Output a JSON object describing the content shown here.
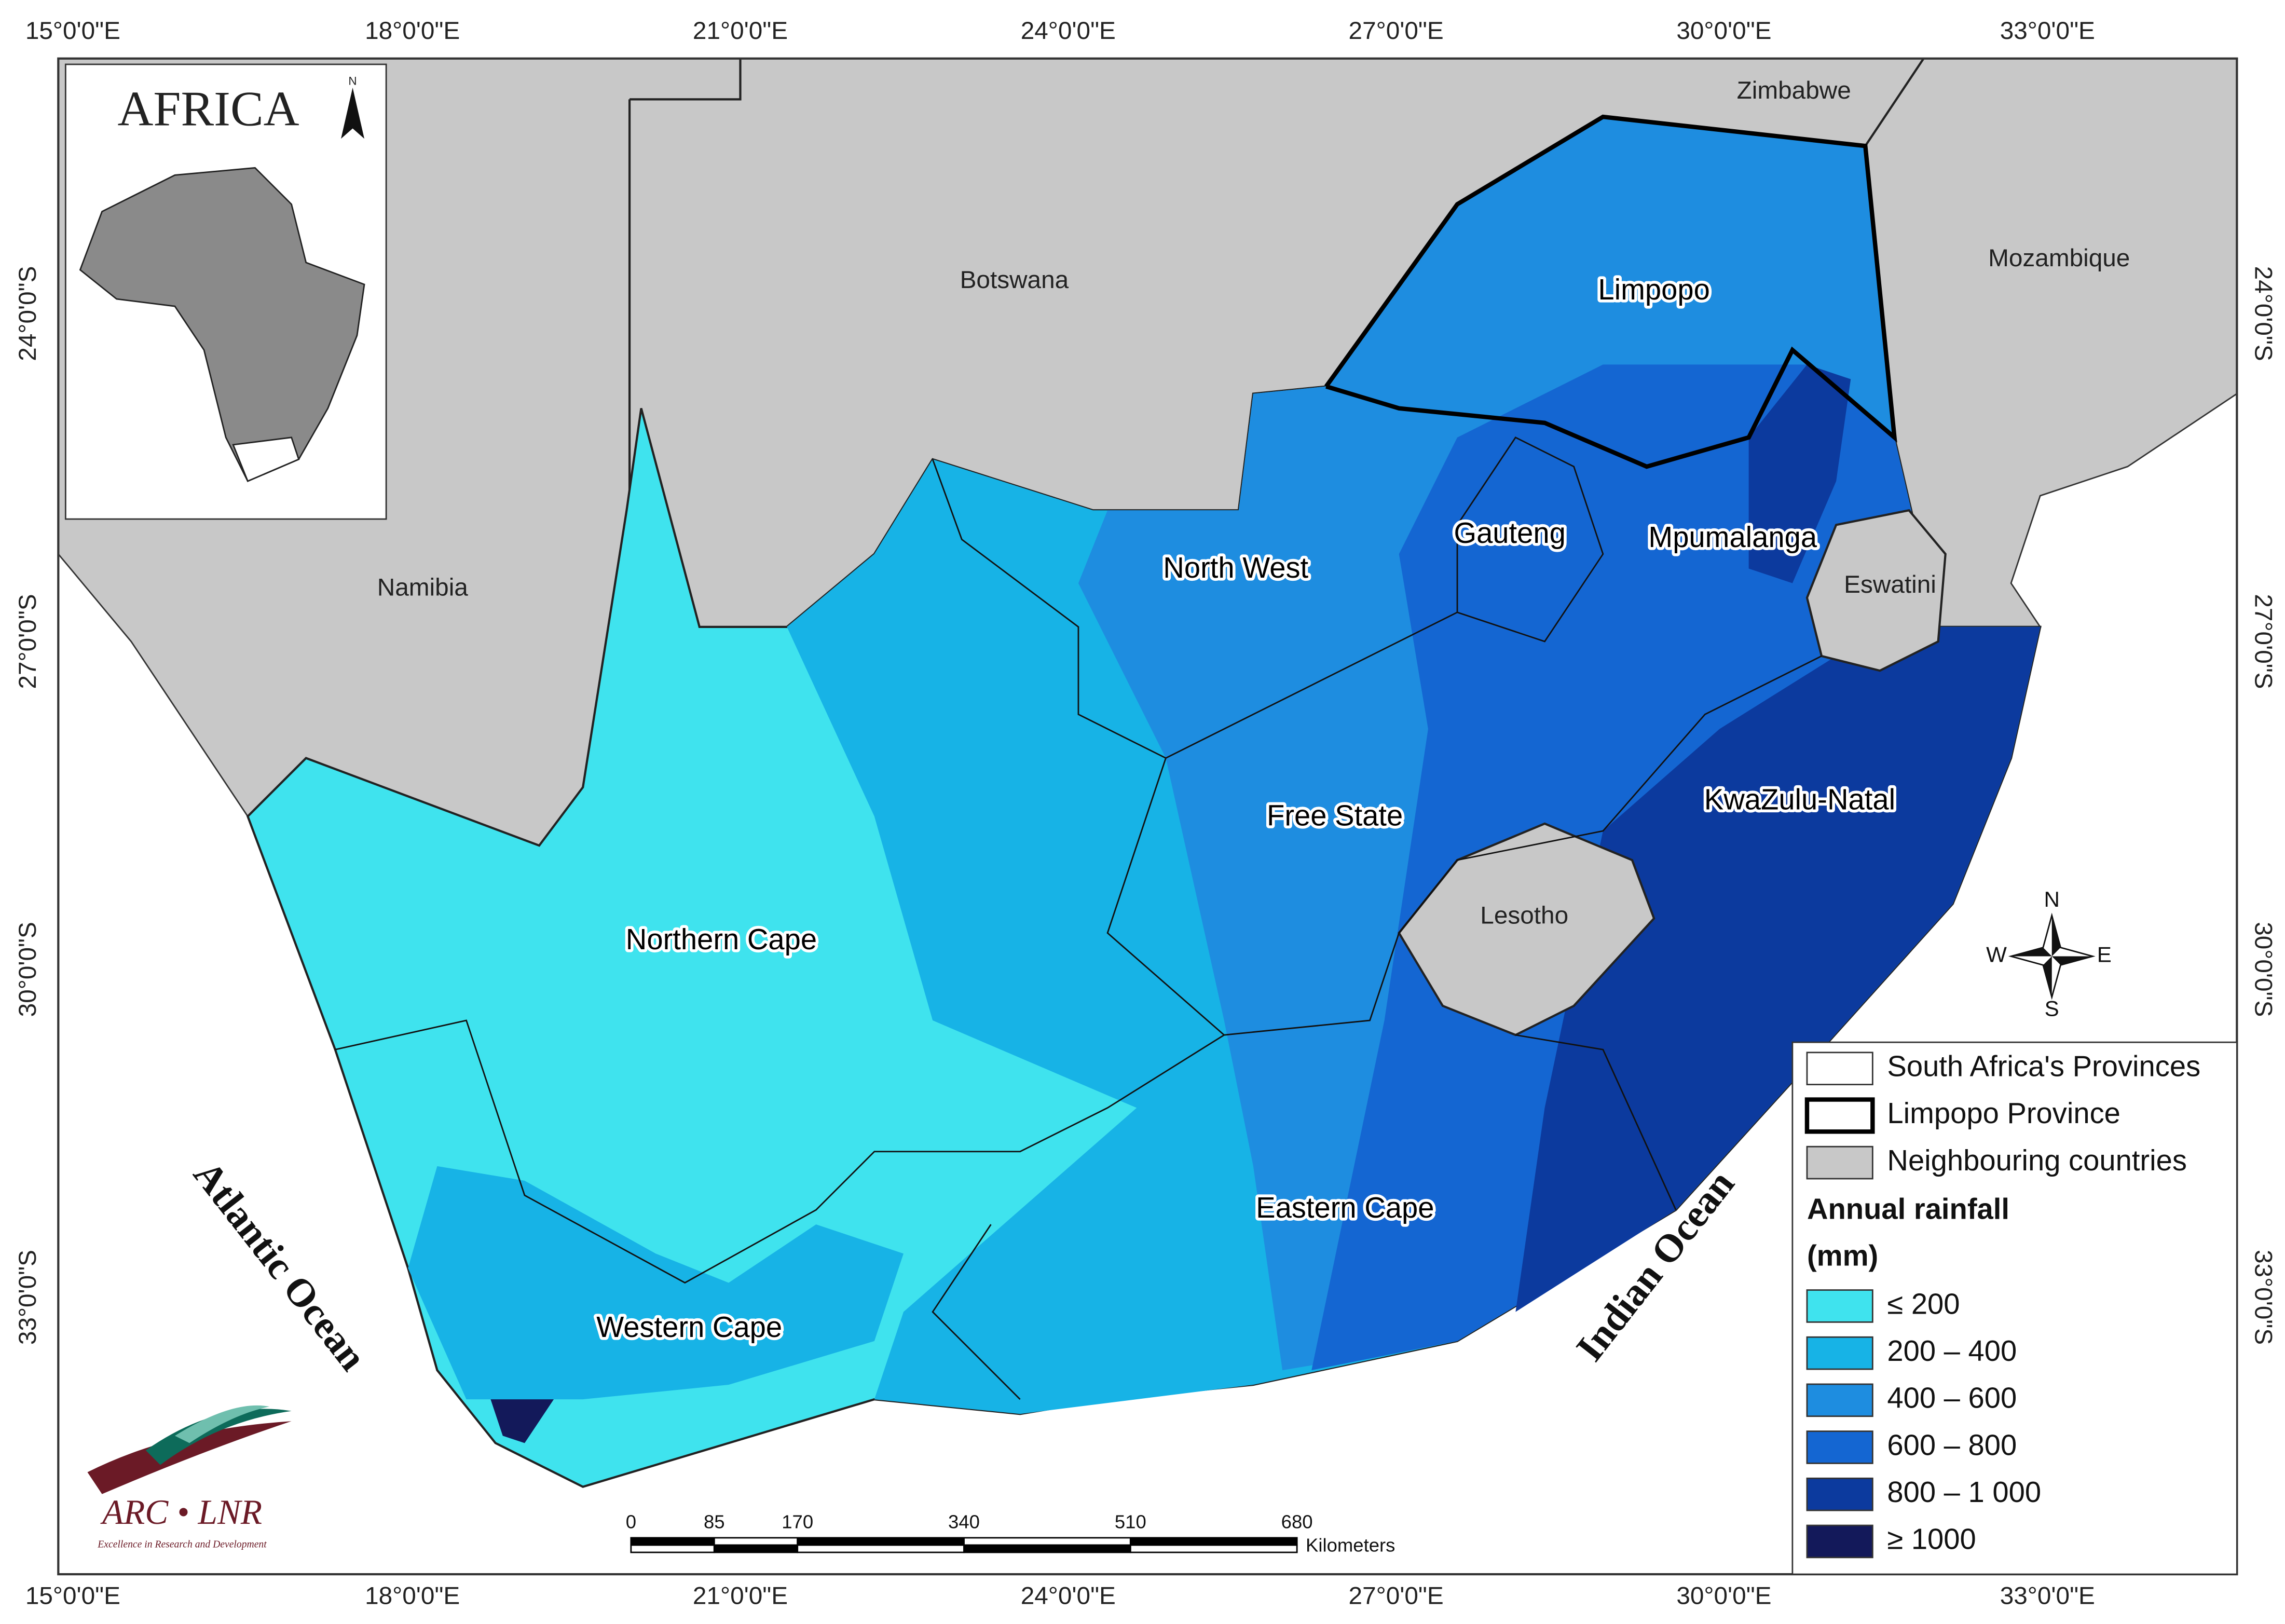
{
  "graticule": {
    "top": [
      "15°0'0\"E",
      "18°0'0\"E",
      "21°0'0\"E",
      "24°0'0\"E",
      "27°0'0\"E",
      "30°0'0\"E",
      "33°0'0\"E"
    ],
    "bottom": [
      "15°0'0\"E",
      "18°0'0\"E",
      "21°0'0\"E",
      "24°0'0\"E",
      "27°0'0\"E",
      "30°0'0\"E",
      "33°0'0\"E"
    ],
    "left": [
      "24°0'0\"S",
      "27°0'0\"S",
      "30°0'0\"S",
      "33°0'0\"S"
    ],
    "right": [
      "24°0'0\"S",
      "27°0'0\"S",
      "30°0'0\"S",
      "33°0'0\"S"
    ]
  },
  "inset": {
    "title": "AFRICA",
    "north": "N"
  },
  "countries": [
    "Zimbabwe",
    "Botswana",
    "Mozambique",
    "Namibia",
    "Eswatini",
    "Lesotho"
  ],
  "provinces": [
    "Limpopo",
    "North West",
    "Gauteng",
    "Mpumalanga",
    "Free State",
    "KwaZulu-Natal",
    "Northern Cape",
    "Eastern Cape",
    "Western Cape"
  ],
  "oceans": [
    "Atlantic Ocean",
    "Indian Ocean"
  ],
  "compass": {
    "n": "N",
    "w": "W",
    "e": "E",
    "s": "S"
  },
  "legend": {
    "items": [
      "South Africa's Provinces",
      "Limpopo Province",
      "Neighbouring countries"
    ],
    "rainfall_title": "Annual rainfall",
    "unit": "(mm)",
    "classes": [
      {
        "label": "≤ 200",
        "color": "#3fe3ee"
      },
      {
        "label": "200 – 400",
        "color": "#17b3e6"
      },
      {
        "label": "400 – 600",
        "color": "#1e8de0"
      },
      {
        "label": "600 – 800",
        "color": "#1466d2"
      },
      {
        "label": "800 – 1 000",
        "color": "#0c3a9e"
      },
      {
        "label": "≥ 1000",
        "color": "#13195a"
      }
    ]
  },
  "scale_bar": {
    "ticks": [
      0,
      85,
      170,
      340,
      510,
      680
    ],
    "unit": "Kilometers"
  },
  "logo": {
    "name": "ARC • LNR",
    "tagline": "Excellence in Research and Development"
  }
}
